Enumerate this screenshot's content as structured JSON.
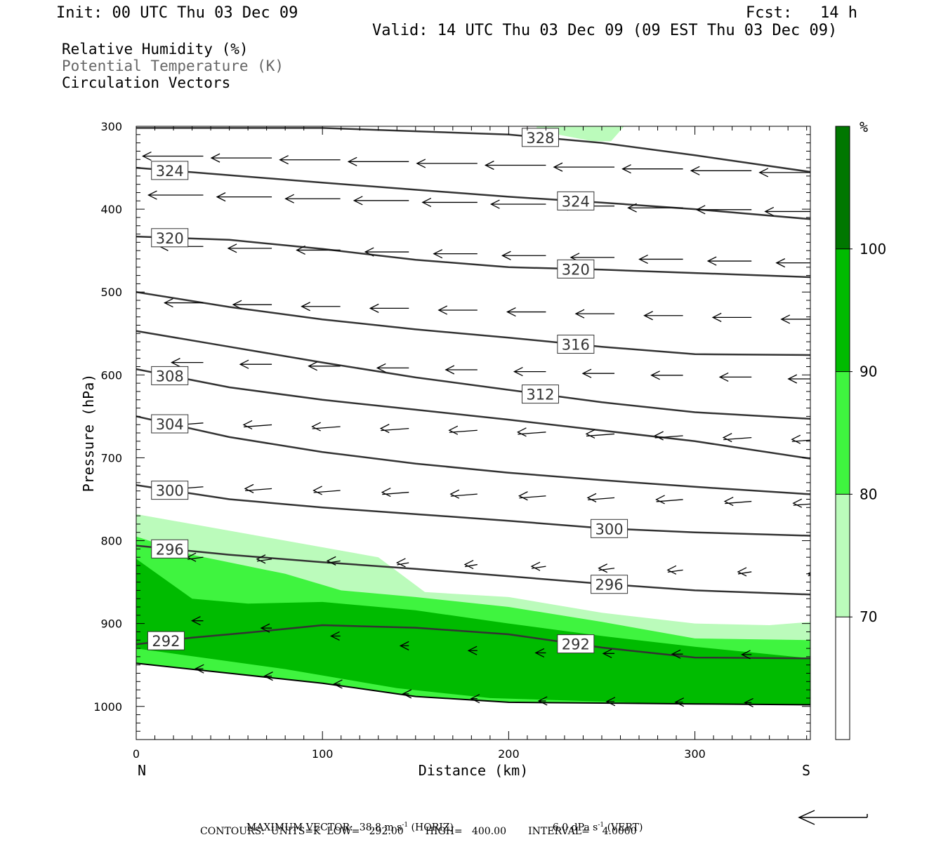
{
  "header": {
    "init": "Init: 00 UTC Thu 03 Dec 09",
    "fcst": "Fcst:   14 h",
    "valid": "Valid: 14 UTC Thu 03 Dec 09 (09 EST Thu 03 Dec 09)",
    "legend_rh": "Relative Humidity (%)",
    "legend_theta": "Potential Temperature (K)",
    "legend_vectors": "Circulation Vectors"
  },
  "colors": {
    "rh_70_80": "#bbfbbb",
    "rh_80_90": "#3ff43f",
    "rh_90_100": "#00bb00",
    "rh_100": "#007700",
    "contour": "#333333",
    "vector": "#000000"
  },
  "chart_data": {
    "type": "cross-section",
    "xlabel": "Distance (km)",
    "ylabel": "Pressure (hPa)",
    "x_ticks": [
      0,
      100,
      200,
      300
    ],
    "y_ticks": [
      300,
      400,
      500,
      600,
      700,
      800,
      900,
      1000
    ],
    "x_range": [
      0,
      362
    ],
    "y_range": [
      300,
      1040
    ],
    "y_inverted": true,
    "left_end_label": "N",
    "right_end_label": "S",
    "colorbar": {
      "unit": "%",
      "levels": [
        70,
        80,
        90,
        100
      ],
      "colors": [
        "#ffffff",
        "#bbfbbb",
        "#3ff43f",
        "#00bb00",
        "#007700"
      ]
    },
    "isentropes": [
      {
        "value": 328,
        "label": "328",
        "x": [
          0,
          100,
          200,
          250,
          300,
          362
        ],
        "p": [
          302,
          302,
          310,
          320,
          335,
          355
        ]
      },
      {
        "value": 324,
        "label": "324",
        "x": [
          0,
          100,
          200,
          250,
          300,
          362
        ],
        "p": [
          350,
          368,
          385,
          392,
          400,
          412
        ]
      },
      {
        "value": 320,
        "label": "320",
        "x": [
          0,
          50,
          100,
          150,
          200,
          250,
          300,
          362
        ],
        "p": [
          433,
          437,
          448,
          461,
          470,
          473,
          477,
          482
        ]
      },
      {
        "value": 316,
        "label": "316",
        "x": [
          0,
          50,
          100,
          150,
          200,
          250,
          300,
          362
        ],
        "p": [
          500,
          518,
          533,
          545,
          555,
          566,
          575,
          576
        ]
      },
      {
        "value": 312,
        "label": "312",
        "x": [
          0,
          50,
          100,
          150,
          200,
          250,
          300,
          362
        ],
        "p": [
          547,
          566,
          585,
          603,
          618,
          633,
          645,
          653
        ]
      },
      {
        "value": 308,
        "label": "308",
        "x": [
          0,
          50,
          100,
          150,
          200,
          250,
          300,
          362
        ],
        "p": [
          593,
          615,
          630,
          642,
          654,
          667,
          680,
          701
        ]
      },
      {
        "value": 304,
        "label": "304",
        "x": [
          0,
          50,
          100,
          150,
          200,
          250,
          300,
          362
        ],
        "p": [
          650,
          675,
          693,
          707,
          718,
          727,
          735,
          744
        ]
      },
      {
        "value": 300,
        "label": "300",
        "x": [
          0,
          50,
          100,
          150,
          200,
          250,
          300,
          362
        ],
        "p": [
          733,
          750,
          760,
          768,
          776,
          785,
          790,
          794
        ]
      },
      {
        "value": 296,
        "label": "296",
        "x": [
          0,
          50,
          100,
          150,
          200,
          250,
          300,
          362
        ],
        "p": [
          806,
          817,
          826,
          834,
          843,
          852,
          860,
          865
        ]
      },
      {
        "value": 292,
        "label": "292",
        "x": [
          0,
          30,
          60,
          100,
          150,
          200,
          250,
          300,
          362
        ],
        "p": [
          925,
          917,
          911,
          902,
          905,
          913,
          929,
          941,
          942
        ]
      }
    ],
    "surface": {
      "x": [
        0,
        50,
        100,
        150,
        200,
        250,
        300,
        362
      ],
      "p": [
        948,
        960,
        972,
        988,
        995,
        996,
        997,
        998
      ]
    },
    "rh_regions": [
      {
        "level": "70-80",
        "x": [
          0,
          30,
          80,
          130,
          155,
          200,
          250,
          300,
          340,
          362,
          362,
          0
        ],
        "p": [
          768,
          780,
          800,
          820,
          862,
          868,
          887,
          900,
          902,
          898,
          1000,
          1000
        ]
      },
      {
        "level": "70-80",
        "x": [
          215,
          235,
          250,
          262,
          255,
          245,
          215
        ],
        "p": [
          300,
          300,
          300,
          300,
          318,
          318,
          305
        ]
      },
      {
        "level": "80-90",
        "x": [
          0,
          30,
          80,
          110,
          150,
          200,
          250,
          300,
          362,
          362,
          0
        ],
        "p": [
          795,
          817,
          840,
          860,
          868,
          880,
          898,
          918,
          920,
          1000,
          1000
        ]
      },
      {
        "level": "90-100",
        "x": [
          0,
          30,
          60,
          100,
          150,
          200,
          250,
          300,
          362,
          362,
          190,
          140,
          80,
          0
        ],
        "p": [
          822,
          870,
          876,
          874,
          884,
          900,
          915,
          928,
          942,
          1002,
          990,
          978,
          955,
          930
        ]
      }
    ],
    "vectors_note": "Circulation vectors: predominantly east-to-west (right-to-left) flow, strongest aloft"
  },
  "footer": {
    "max_vector_label": "MAXIMUM VECTOR:  38.8 m s",
    "max_vector_exp": "-1",
    "max_vector_horiz": " (HORIZ)",
    "max_vector_vert_val": "6.0 dPa s",
    "max_vector_vert_exp": "-1",
    "max_vector_vert": " (VERT)",
    "contours": "CONTOURS:  UNITS=K  LOW=   292.00       HIGH=   400.00       INTERVAL=    4.0000"
  }
}
